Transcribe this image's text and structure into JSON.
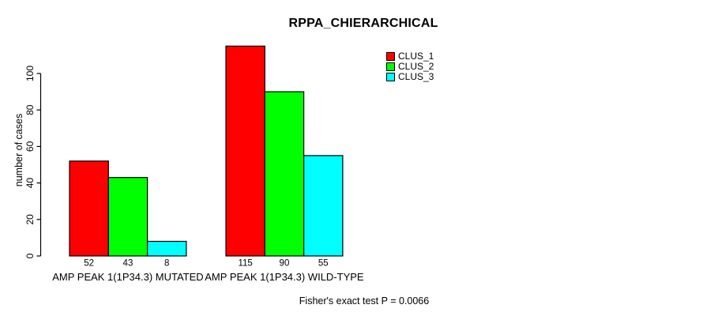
{
  "chart_data": {
    "type": "bar",
    "title": "RPPA_CHIERARCHICAL",
    "xlabel": "",
    "ylabel": "number of cases",
    "categories": [
      "AMP PEAK 1(1P34.3) MUTATED",
      "AMP PEAK 1(1P34.3) WILD-TYPE"
    ],
    "series": [
      {
        "name": "CLUS_1",
        "color": "#FF0000",
        "values": [
          52,
          115
        ]
      },
      {
        "name": "CLUS_2",
        "color": "#00FF00",
        "values": [
          43,
          90
        ]
      },
      {
        "name": "CLUS_3",
        "color": "#00FFFF",
        "values": [
          8,
          55
        ]
      }
    ],
    "bar_value_labels": [
      [
        52,
        43,
        8
      ],
      [
        115,
        90,
        55
      ]
    ],
    "yticks": [
      0,
      20,
      40,
      60,
      80,
      100
    ],
    "ylim": [
      0,
      115
    ],
    "grid": false,
    "legend_position": "top-right",
    "axis_color": "#000000",
    "background_color": "#FFFFFF",
    "annotation": "Fisher's exact test P = 0.0066"
  }
}
